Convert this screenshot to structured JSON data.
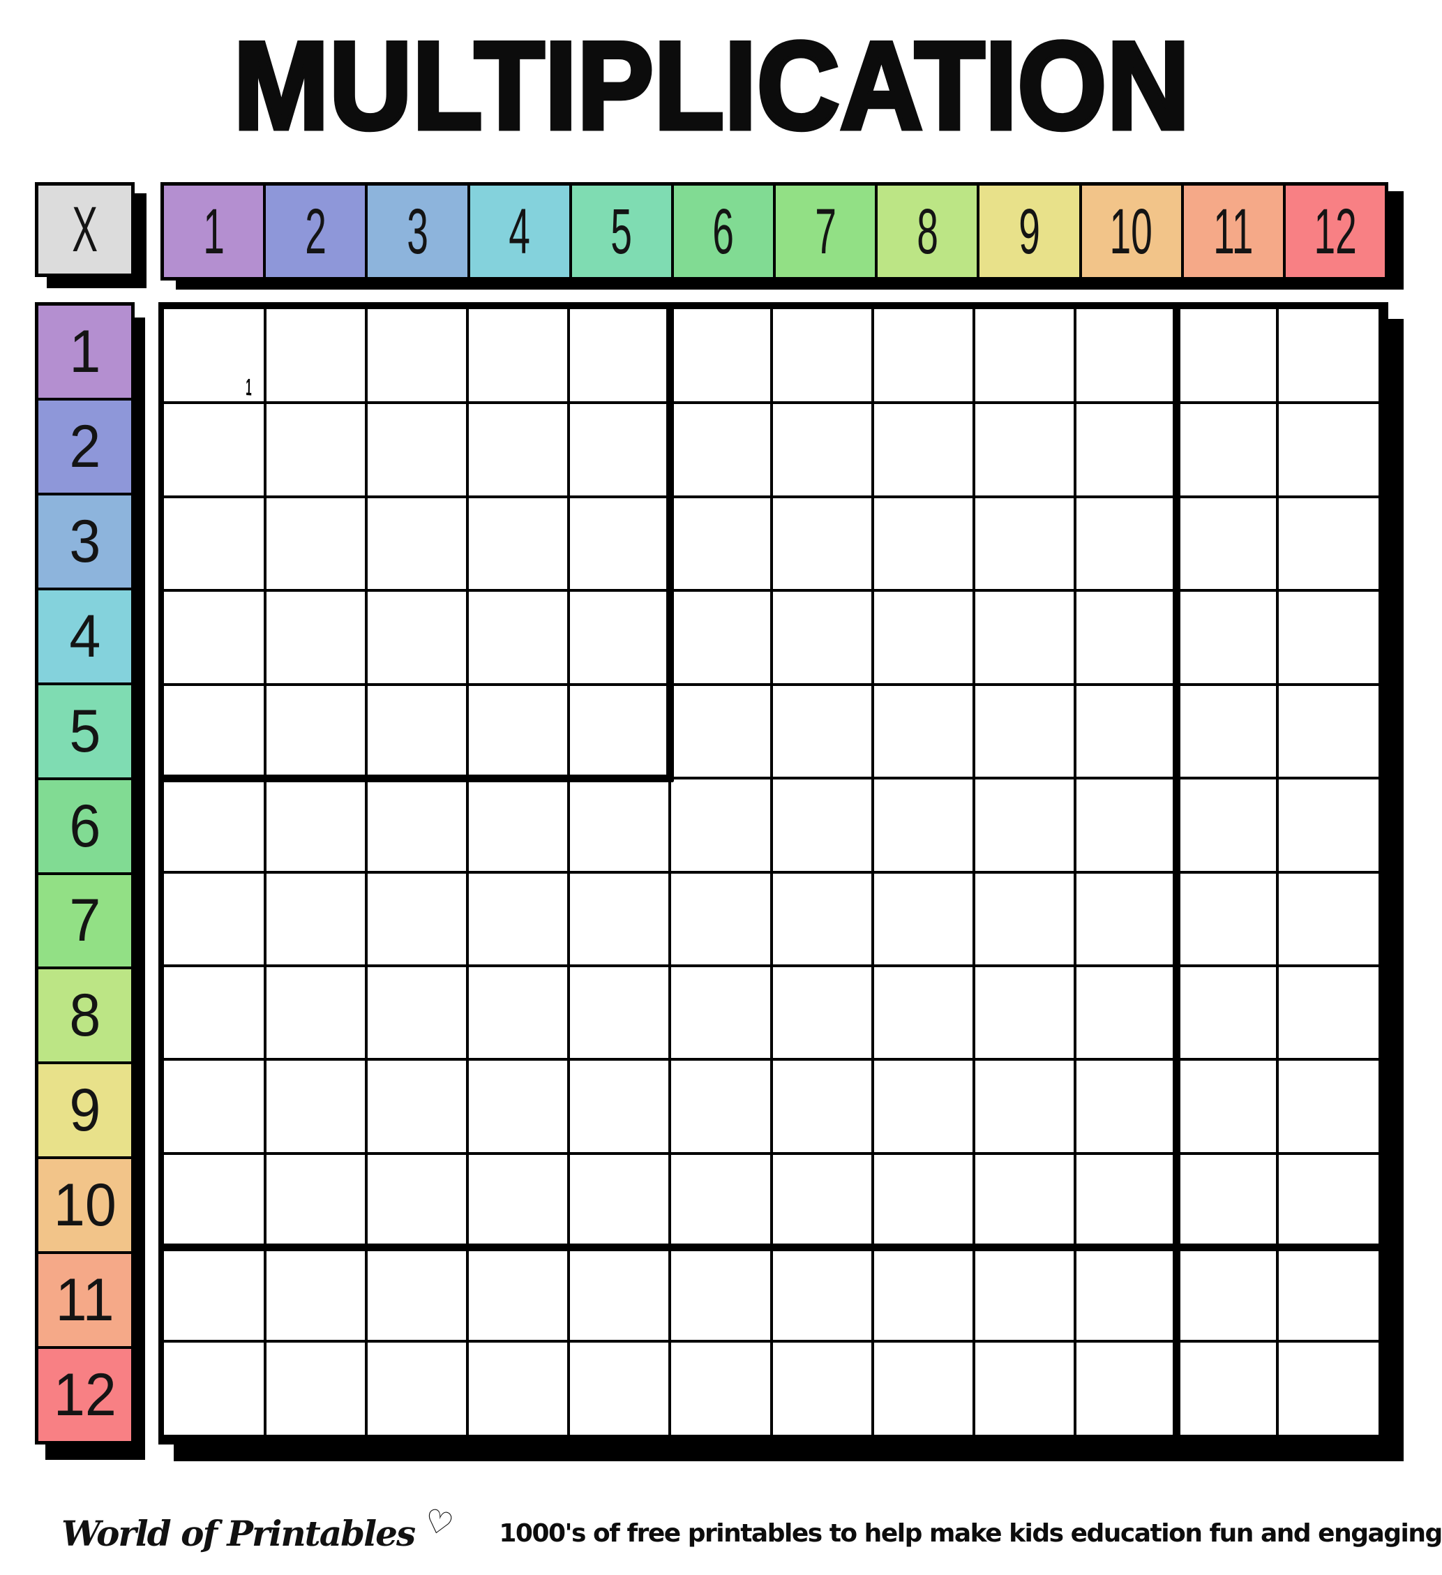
{
  "title": "MULTIPLICATION",
  "table": {
    "operator": "X",
    "operator_bg": "#dcdcdc",
    "columns": [
      "1",
      "2",
      "3",
      "4",
      "5",
      "6",
      "7",
      "8",
      "9",
      "10",
      "11",
      "12"
    ],
    "rows": [
      "1",
      "2",
      "3",
      "4",
      "5",
      "6",
      "7",
      "8",
      "9",
      "10",
      "11",
      "12"
    ],
    "grid_cols": 12,
    "grid_rows": 12,
    "cells_blank": true,
    "line_color": "#000000",
    "rainbow_colors": [
      "#b48fd0",
      "#8e97d9",
      "#8db4dc",
      "#84d2dc",
      "#7fdcb2",
      "#81db93",
      "#92e085",
      "#bce585",
      "#e8e18a",
      "#f2c489",
      "#f5a988",
      "#f88084"
    ]
  },
  "artifact": {
    "stray_mark": "1"
  },
  "footer": {
    "brand": "World of Printables",
    "heart": "♡",
    "tagline": "1000's of free printables to help make kids education fun and engaging"
  }
}
